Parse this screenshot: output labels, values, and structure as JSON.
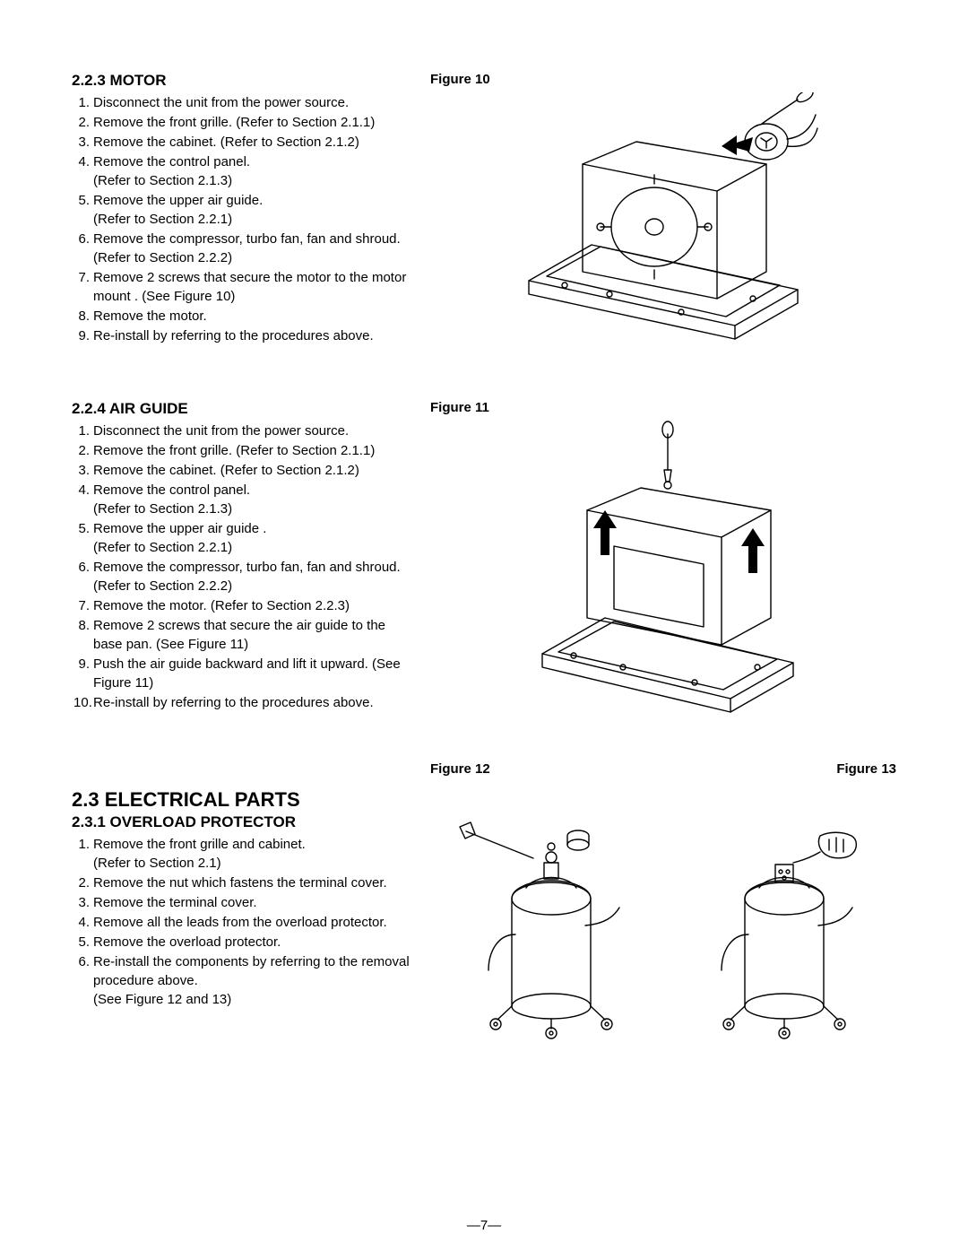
{
  "page_number": "—7—",
  "section_223": {
    "heading": "2.2.3 MOTOR",
    "items": [
      "Disconnect the unit from the power source.",
      "Remove the front grille. (Refer to Section 2.1.1)",
      "Remove the cabinet. (Refer to Section 2.1.2)",
      "Remove the control panel.\n(Refer to Section 2.1.3)",
      "Remove the upper air guide.\n(Refer to Section 2.2.1)",
      "Remove the compressor, turbo fan, fan and shroud. (Refer to Section 2.2.2)",
      "Remove 2 screws that secure the motor to the motor mount . (See Figure 10)",
      "Remove the motor.",
      "Re-install by referring to the procedures above."
    ]
  },
  "section_224": {
    "heading": "2.2.4 AIR GUIDE",
    "items": [
      "Disconnect the unit from the power source.",
      "Remove the front grille. (Refer to Section 2.1.1)",
      "Remove the cabinet. (Refer to Section 2.1.2)",
      "Remove the control panel.\n(Refer to Section 2.1.3)",
      "Remove the upper air guide .\n(Refer to Section 2.2.1)",
      "Remove the compressor, turbo fan, fan and shroud. (Refer to Section 2.2.2)",
      "Remove the motor. (Refer to Section 2.2.3)",
      "Remove 2 screws that secure the air guide to the base pan. (See Figure 11)",
      "Push the air guide backward and lift it upward. (See Figure 11)",
      "Re-install by referring to the procedures above."
    ]
  },
  "section_23": {
    "heading_main": "2.3 ELECTRICAL PARTS",
    "heading_sub": "2.3.1 OVERLOAD PROTECTOR",
    "items": [
      "Remove the front grille and cabinet.\n(Refer to Section 2.1)",
      "Remove the nut which fastens the terminal cover.",
      "Remove the terminal cover.",
      "Remove all the leads from the overload protector.",
      "Remove the overload protector.",
      "Re-install the components by referring to the removal procedure above.\n(See Figure 12 and 13)"
    ]
  },
  "figures": {
    "fig10": {
      "label": "Figure 10"
    },
    "fig11": {
      "label": "Figure 11"
    },
    "fig12": {
      "label": "Figure 12"
    },
    "fig13": {
      "label": "Figure 13"
    }
  },
  "style": {
    "body_font_size": 15,
    "heading_sub_size": 17,
    "heading_main_size": 22,
    "line_height": 1.4,
    "text_color": "#000000",
    "bg_color": "#ffffff",
    "stroke_color": "#000000",
    "stroke_width": 1.4,
    "font_family": "Arial, Helvetica, sans-serif"
  }
}
